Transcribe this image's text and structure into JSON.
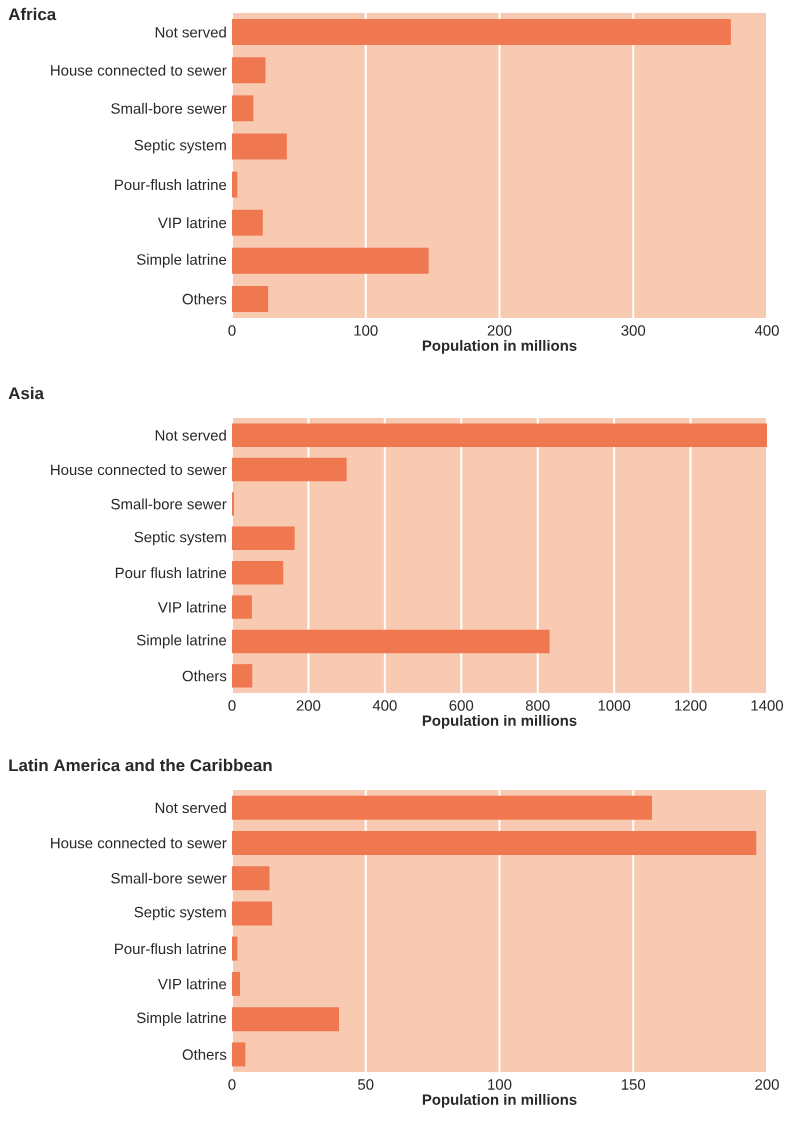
{
  "chart_data": [
    {
      "type": "bar",
      "orientation": "horizontal",
      "title": "Africa",
      "xlabel": "Population in millions",
      "categories": [
        "Not served",
        "House connected to sewer",
        "Small-bore sewer",
        "Septic system",
        "Pour-flush latrine",
        "VIP latrine",
        "Simple latrine",
        "Others"
      ],
      "values": [
        373,
        25,
        16,
        41,
        4,
        23,
        147,
        27
      ],
      "color": "#f07850",
      "xlim": [
        0,
        400
      ],
      "xticks": [
        0,
        100,
        200,
        300,
        400
      ],
      "grid": "x"
    },
    {
      "type": "bar",
      "orientation": "horizontal",
      "title": "Asia",
      "xlabel": "Population in millions",
      "categories": [
        "Not served",
        "House connected to sewer",
        "Small-bore sewer",
        "Septic system",
        "Pour flush latrine",
        "VIP latrine",
        "Simple latrine",
        "Others"
      ],
      "values": [
        1400,
        300,
        5,
        164,
        134,
        52,
        831,
        53
      ],
      "color": "#f07850",
      "xlim": [
        0,
        1400
      ],
      "xticks": [
        0,
        200,
        400,
        600,
        800,
        1000,
        1200,
        1400
      ],
      "grid": "x"
    },
    {
      "type": "bar",
      "orientation": "horizontal",
      "title": "Latin America and the Caribbean",
      "xlabel": "Population in millions",
      "categories": [
        "Not served",
        "House connected to sewer",
        "Small-bore sewer",
        "Septic system",
        "Pour-flush latrine",
        "VIP latrine",
        "Simple latrine",
        "Others"
      ],
      "values": [
        157,
        196,
        14,
        15,
        2,
        3,
        40,
        5
      ],
      "color": "#f07850",
      "xlim": [
        0,
        200
      ],
      "xticks": [
        0,
        50,
        100,
        150,
        200
      ],
      "grid": "x"
    }
  ]
}
